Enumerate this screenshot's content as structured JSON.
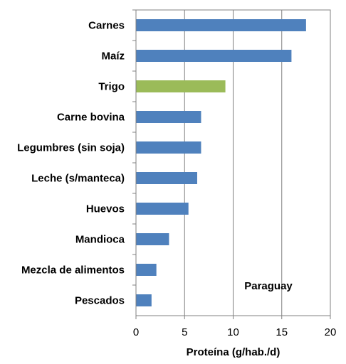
{
  "chart_data": {
    "type": "bar",
    "orientation": "horizontal",
    "categories": [
      "Carnes",
      "Maíz",
      "Trigo",
      "Carne bovina",
      "Legumbres (sin soja)",
      "Leche (s/manteca)",
      "Huevos",
      "Mandioca",
      "Mezcla de alimentos",
      "Pescados"
    ],
    "values": [
      17.5,
      16.0,
      9.2,
      6.7,
      6.7,
      6.3,
      5.4,
      3.4,
      2.1,
      1.6
    ],
    "bar_colors": [
      "#4F81BD",
      "#4F81BD",
      "#9BBB59",
      "#4F81BD",
      "#4F81BD",
      "#4F81BD",
      "#4F81BD",
      "#4F81BD",
      "#4F81BD",
      "#4F81BD"
    ],
    "xlabel": "Proteína (g/hab./d)",
    "ylabel": "",
    "xlim": [
      0,
      20
    ],
    "xticks": [
      "0",
      "5",
      "10",
      "15",
      "20"
    ],
    "annotation": "Paraguay",
    "annotation_position": "bottom-right",
    "grid": "vertical",
    "colors": {
      "default_bar": "#4F81BD",
      "highlight_bar": "#9BBB59",
      "gridline": "#808080",
      "frame": "#808080"
    }
  }
}
